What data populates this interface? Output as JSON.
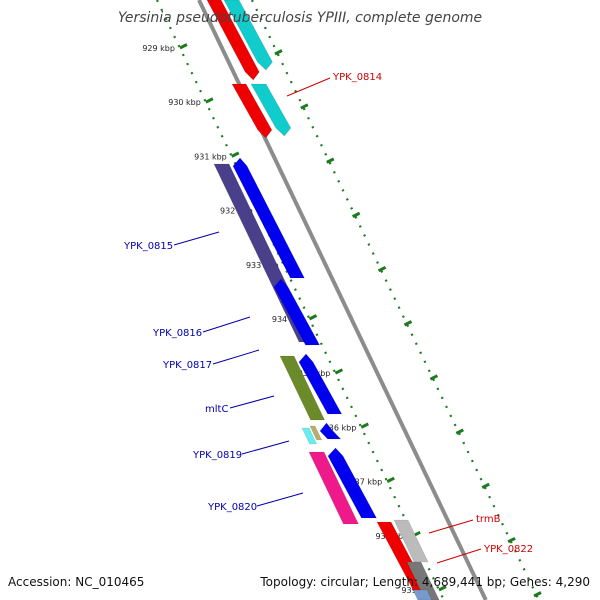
{
  "title": "Yersinia pseudotuberculosis YPIII, complete genome",
  "footer": {
    "accession": "Accession: NC_010465",
    "topology": "Topology: circular; Length: 4,689,441 bp; Genes: 4,290"
  },
  "colors": {
    "backbone": "#8c8c8c",
    "tick": "#1e7a1e",
    "label_forward": "#cc0000",
    "label_reverse": "#0000aa",
    "red": "#ee0000",
    "cyan": "#11cccc",
    "blue": "#0000ee",
    "indigo": "#4a3f8a",
    "olive": "#6b8a2a",
    "pink": "#ee1a8a",
    "gray": "#bbbbbb",
    "darkgray": "#777777",
    "lightcyan": "#66eeee",
    "tan": "#b9ad6a",
    "steel": "#7799cc"
  },
  "ticks": [
    "929 kbp",
    "930 kbp",
    "931 kbp",
    "932 kbp",
    "933 kbp",
    "934 kbp",
    "935 kbp",
    "936 kbp",
    "937 kbp",
    "938 kbp",
    "939 kbp"
  ],
  "gene_labels": [
    {
      "text": "YPK_0814",
      "strand": "forward"
    },
    {
      "text": "YPK_0815",
      "strand": "reverse"
    },
    {
      "text": "YPK_0816",
      "strand": "reverse"
    },
    {
      "text": "YPK_0817",
      "strand": "reverse"
    },
    {
      "text": "mltC",
      "strand": "reverse"
    },
    {
      "text": "YPK_0819",
      "strand": "reverse"
    },
    {
      "text": "YPK_0820",
      "strand": "reverse"
    },
    {
      "text": "trmB",
      "strand": "forward"
    },
    {
      "text": "YPK_0822",
      "strand": "forward"
    }
  ]
}
